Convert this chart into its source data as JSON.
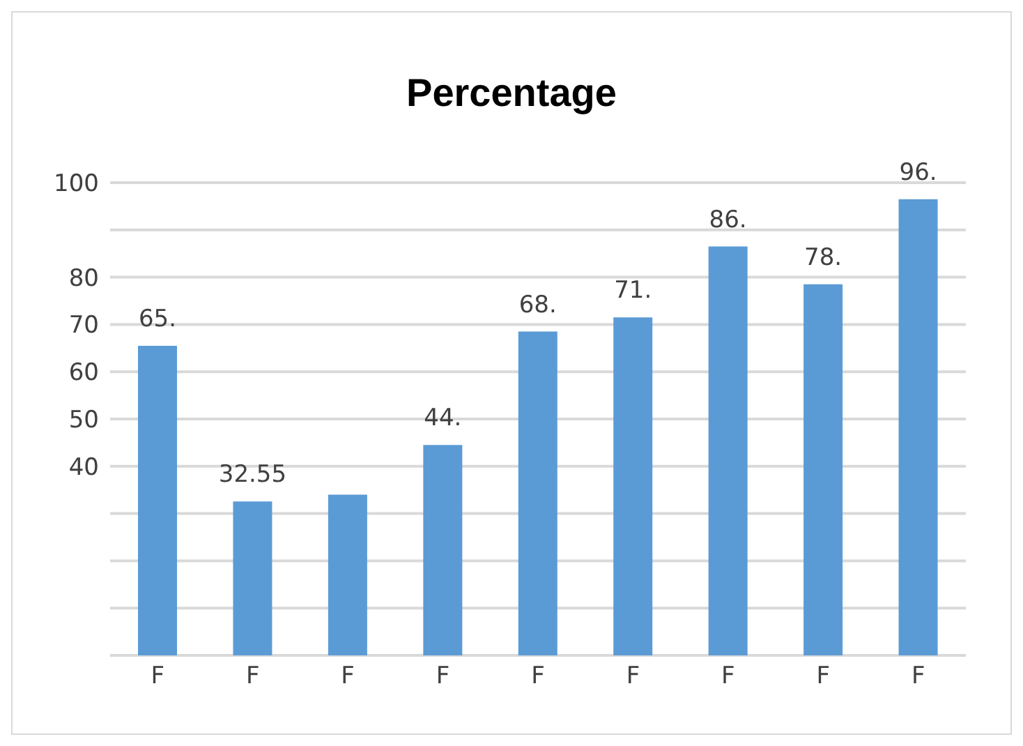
{
  "chart_data": {
    "type": "bar",
    "title": "Percentage",
    "categories": [
      "F",
      "F",
      "F",
      "F",
      "F",
      "F",
      "F",
      "F",
      "F"
    ],
    "values": [
      65.5,
      32.55,
      34,
      44.5,
      68.5,
      71.5,
      86.5,
      78.5,
      96.5
    ],
    "value_labels": [
      "65.",
      "32.55",
      null,
      "44.",
      "68.",
      "71.",
      "86.",
      "78.",
      "96."
    ],
    "color": "#5b9bd5",
    "ylim": [
      0,
      100
    ],
    "yticks": [
      {
        "value": 0,
        "label": null
      },
      {
        "value": 10,
        "label": null
      },
      {
        "value": 20,
        "label": null
      },
      {
        "value": 30,
        "label": null
      },
      40,
      50,
      60,
      70,
      80,
      {
        "value": 90,
        "label": null
      },
      100
    ],
    "grid": "y"
  }
}
